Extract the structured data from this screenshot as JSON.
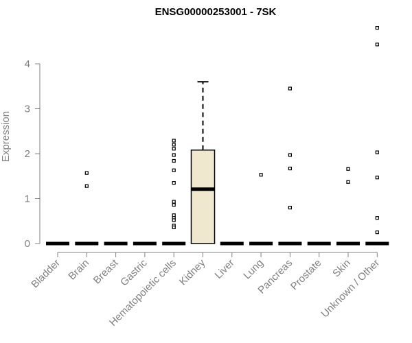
{
  "chart_data": {
    "type": "box",
    "title": "ENSG00000253001 - 7SK",
    "xlabel": "",
    "ylabel": "Expression",
    "ylim": [
      0,
      4.9
    ],
    "yticks": [
      0,
      1,
      2,
      3,
      4
    ],
    "grid": false,
    "box_fill": "#efe8cf",
    "median_color": "#000000",
    "categories": [
      "Bladder",
      "Brain",
      "Breast",
      "Gastric",
      "Hematopoietic cells",
      "Kidney",
      "Liver",
      "Lung",
      "Pancreas",
      "Prostate",
      "Skin",
      "Unknown / Other"
    ],
    "boxes": [
      {
        "category": "Bladder",
        "min": 0,
        "q1": 0,
        "median": 0,
        "q3": 0,
        "max": 0,
        "outliers": []
      },
      {
        "category": "Brain",
        "min": 0,
        "q1": 0,
        "median": 0,
        "q3": 0,
        "max": 0,
        "outliers": [
          1.57,
          1.28
        ]
      },
      {
        "category": "Breast",
        "min": 0,
        "q1": 0,
        "median": 0,
        "q3": 0,
        "max": 0,
        "outliers": []
      },
      {
        "category": "Gastric",
        "min": 0,
        "q1": 0,
        "median": 0,
        "q3": 0,
        "max": 0,
        "outliers": []
      },
      {
        "category": "Hematopoietic cells",
        "min": 0,
        "q1": 0,
        "median": 0,
        "q3": 0,
        "max": 0,
        "outliers": [
          2.29,
          2.2,
          2.11,
          1.97,
          1.84,
          1.63,
          1.35,
          0.93,
          0.86,
          0.63,
          0.57,
          0.52,
          0.4,
          0.36
        ]
      },
      {
        "category": "Kidney",
        "min": 0,
        "q1": 0,
        "median": 1.21,
        "q3": 2.08,
        "max": 3.6,
        "outliers": []
      },
      {
        "category": "Liver",
        "min": 0,
        "q1": 0,
        "median": 0,
        "q3": 0,
        "max": 0,
        "outliers": []
      },
      {
        "category": "Lung",
        "min": 0,
        "q1": 0,
        "median": 0,
        "q3": 0,
        "max": 0,
        "outliers": [
          1.53
        ]
      },
      {
        "category": "Pancreas",
        "min": 0,
        "q1": 0,
        "median": 0,
        "q3": 0,
        "max": 0,
        "outliers": [
          3.45,
          1.97,
          1.67,
          0.8
        ]
      },
      {
        "category": "Prostate",
        "min": 0,
        "q1": 0,
        "median": 0,
        "q3": 0,
        "max": 0,
        "outliers": []
      },
      {
        "category": "Skin",
        "min": 0,
        "q1": 0,
        "median": 0,
        "q3": 0,
        "max": 0,
        "outliers": [
          1.66,
          1.37
        ]
      },
      {
        "category": "Unknown / Other",
        "min": 0,
        "q1": 0,
        "median": 0,
        "q3": 0,
        "max": 0,
        "outliers": [
          4.8,
          4.43,
          2.03,
          1.47,
          0.57,
          0.25
        ]
      }
    ]
  }
}
